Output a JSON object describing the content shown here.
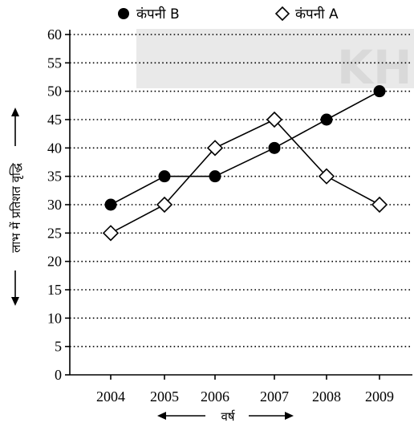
{
  "chart_data": {
    "type": "line",
    "x": [
      "2004",
      "2005",
      "2006",
      "2007",
      "2008",
      "2009"
    ],
    "series": [
      {
        "name": "कंपनी  B",
        "marker": "filled-circle",
        "values": [
          30,
          35,
          35,
          40,
          45,
          50
        ]
      },
      {
        "name": "कंपनी  A",
        "marker": "hollow-diamond",
        "values": [
          25,
          30,
          40,
          45,
          35,
          30
        ]
      }
    ],
    "xlabel": "वर्ष",
    "ylabel": "लाभ में प्रतिशत वृद्धि",
    "ylim": [
      0,
      60
    ],
    "yticks": [
      0,
      5,
      10,
      15,
      20,
      25,
      30,
      35,
      40,
      45,
      50,
      55,
      60
    ],
    "grid": "horizontal-dotted",
    "legend_position": "top",
    "watermark_text": "KH",
    "colors": {
      "line": "#000000",
      "watermark": "#d9d9d9"
    }
  }
}
